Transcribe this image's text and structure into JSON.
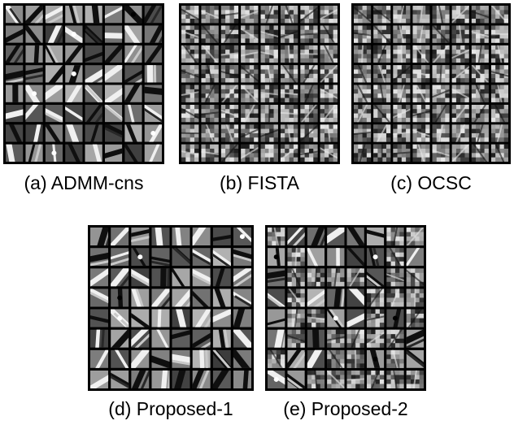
{
  "figure": {
    "panels": [
      {
        "id": "a",
        "caption": "(a) ADMM-cns",
        "style": "smooth"
      },
      {
        "id": "b",
        "caption": "(b) FISTA",
        "style": "noisy"
      },
      {
        "id": "c",
        "caption": "(c) OCSC",
        "style": "noisy"
      },
      {
        "id": "d",
        "caption": "(d) Proposed-1",
        "style": "smooth"
      },
      {
        "id": "e",
        "caption": "(e) Proposed-2",
        "style": "mixed"
      }
    ],
    "grid_rows": 8,
    "grid_cols": 8
  }
}
